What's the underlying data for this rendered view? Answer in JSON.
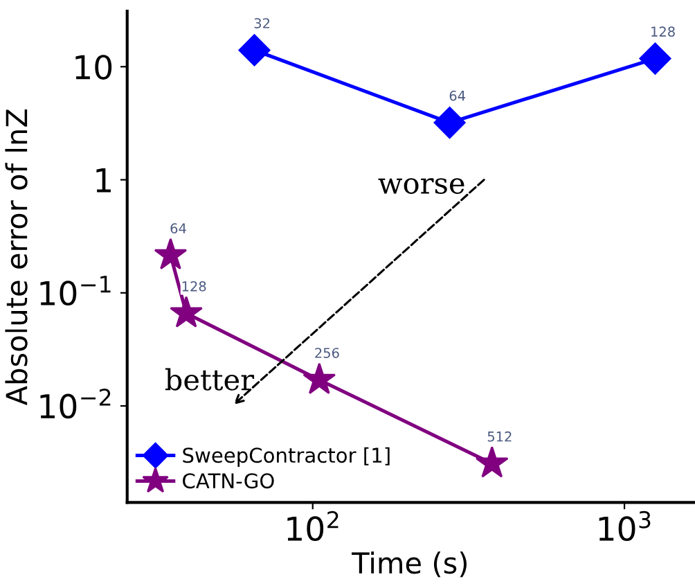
{
  "chart_data": {
    "type": "line",
    "xlabel": "Time (s)",
    "ylabel": "Absolute error of lnZ",
    "log": "xy",
    "xlim": [
      25.4,
      1667
    ],
    "ylim": [
      0.0014,
      31
    ],
    "xticks": [
      {
        "value": 100,
        "label": "10$^{2}$"
      },
      {
        "value": 1000,
        "label": "10$^{3}$"
      }
    ],
    "yticks": [
      {
        "value": 0.01,
        "label": "10$^{−2}$"
      },
      {
        "value": 0.1,
        "label": "10$^{−1}$"
      },
      1,
      10
    ],
    "grid": false,
    "legend": "bottom left",
    "series": [
      {
        "name": "SweepContractor [1]",
        "color": "#0000ff",
        "marker": "diamond",
        "x": [
          65,
          275,
          1255
        ],
        "values": [
          14,
          3.2,
          11.8
        ]
      },
      {
        "name": "CATN-GO",
        "color": "#800080",
        "marker": "star",
        "x": [
          35,
          39.3,
          105,
          376
        ],
        "values": [
          0.215,
          0.066,
          0.017,
          0.0031
        ]
      }
    ],
    "annotations": [
      "worse",
      "better",
      {
        "text": "32",
        "x": 65,
        "y": 14
      },
      {
        "text": "64",
        "x": 275,
        "y": 3.2
      },
      {
        "text": "128",
        "x": 1255,
        "y": 11.8
      },
      {
        "text": "64",
        "x": 35,
        "y": 0.215
      },
      {
        "text": "128",
        "x": 39.3,
        "y": 0.066
      },
      {
        "text": "256",
        "x": 105,
        "y": 0.017
      },
      {
        "text": "512",
        "x": 376,
        "y": 0.0031
      }
    ]
  }
}
